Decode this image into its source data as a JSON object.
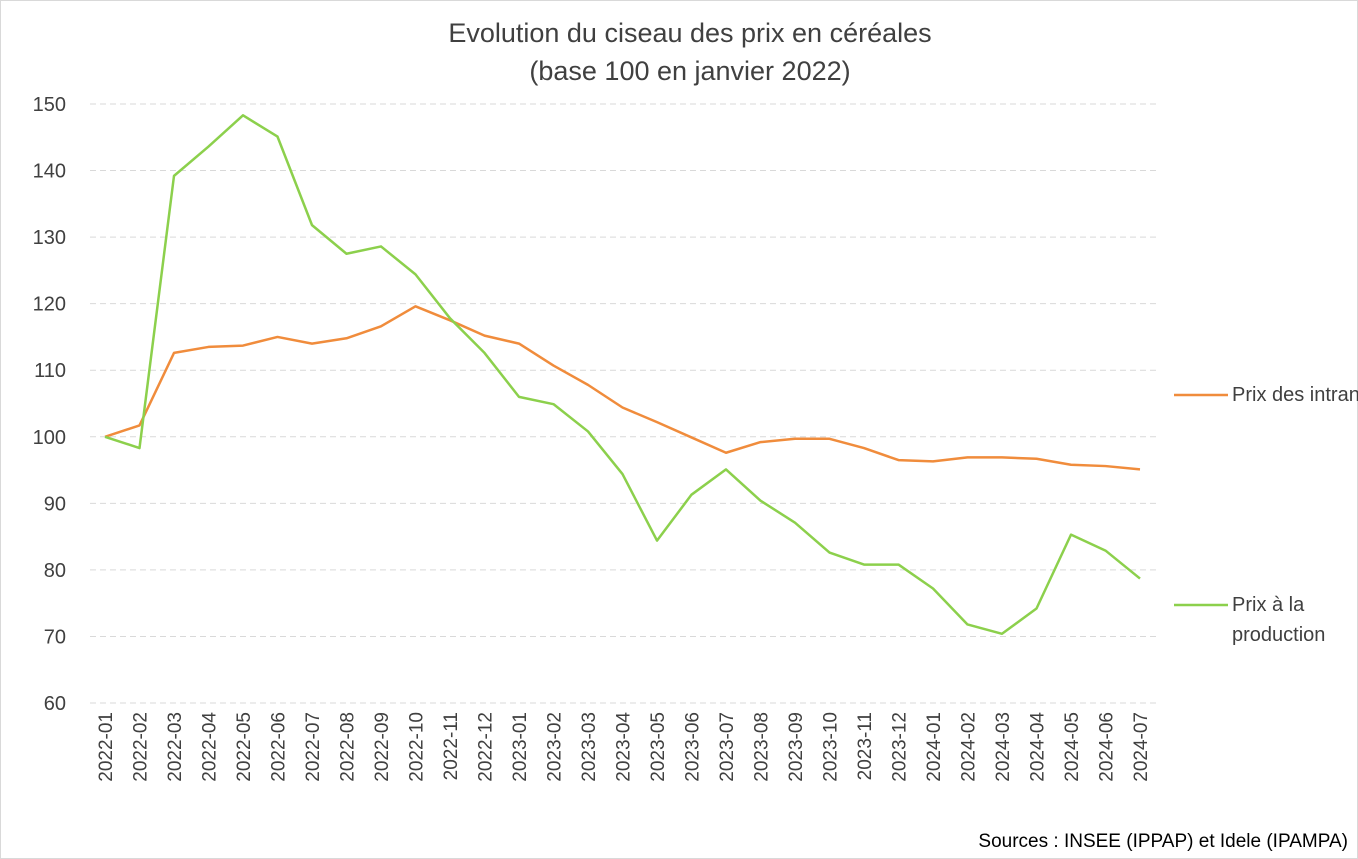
{
  "chart_data": {
    "type": "line",
    "title": "Evolution du ciseau des prix en céréales",
    "subtitle": "(base 100 en janvier 2022)",
    "x": [
      "2022-01",
      "2022-02",
      "2022-03",
      "2022-04",
      "2022-05",
      "2022-06",
      "2022-07",
      "2022-08",
      "2022-09",
      "2022-10",
      "2022-11",
      "2022-12",
      "2023-01",
      "2023-02",
      "2023-03",
      "2023-04",
      "2023-05",
      "2023-06",
      "2023-07",
      "2023-08",
      "2023-09",
      "2023-10",
      "2023-11",
      "2023-12",
      "2024-01",
      "2024-02",
      "2024-03",
      "2024-04",
      "2024-05",
      "2024-06",
      "2024-07"
    ],
    "series": [
      {
        "name": "Prix des intrants",
        "color": "#f08c3c",
        "values": [
          100,
          101.7,
          112.6,
          113.5,
          113.7,
          115.0,
          114.0,
          114.8,
          116.6,
          119.6,
          117.5,
          115.2,
          114.0,
          110.7,
          107.8,
          104.4,
          102.2,
          99.9,
          97.6,
          99.2,
          99.7,
          99.7,
          98.3,
          96.5,
          96.3,
          96.9,
          96.9,
          96.7,
          95.8,
          95.6,
          95.1
        ]
      },
      {
        "name": "Prix à la production",
        "color": "#8cd04c",
        "values": [
          100,
          98.3,
          139.2,
          143.6,
          148.3,
          145.1,
          131.8,
          127.5,
          128.6,
          124.4,
          117.8,
          112.6,
          106.0,
          104.9,
          100.8,
          94.4,
          84.4,
          91.3,
          95.1,
          90.4,
          87.1,
          82.6,
          80.8,
          80.8,
          77.2,
          71.8,
          70.4,
          74.2,
          85.3,
          82.9,
          78.7
        ]
      }
    ],
    "ylim": [
      60,
      150
    ],
    "yticks": [
      60,
      70,
      80,
      90,
      100,
      110,
      120,
      130,
      140,
      150
    ],
    "grid": true,
    "legend": "right",
    "source": "Sources : INSEE (IPPAP)  et Idele (IPAMPA)"
  }
}
